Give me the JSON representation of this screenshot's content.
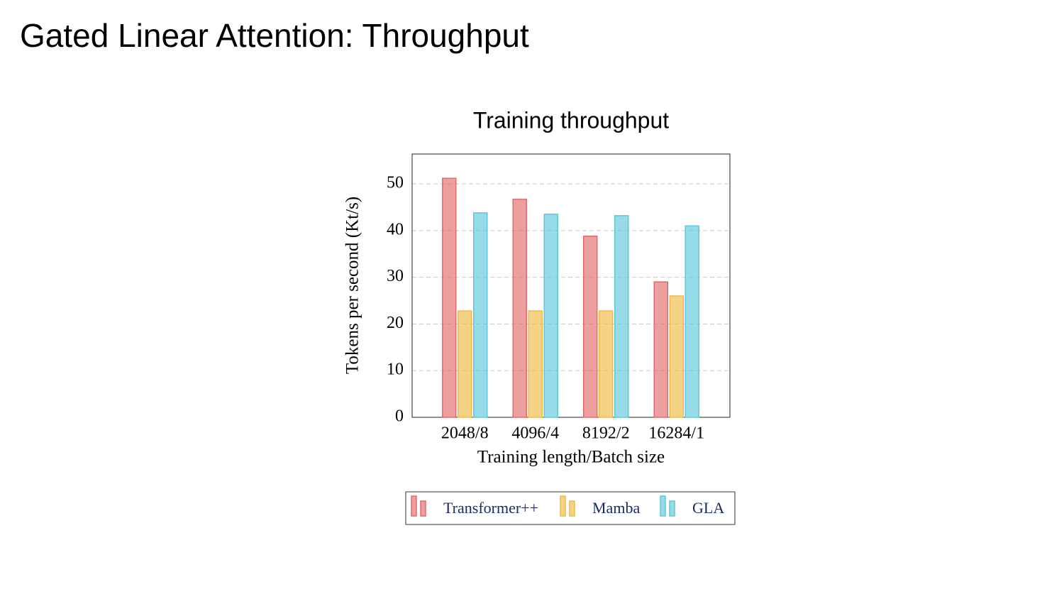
{
  "slide": {
    "title": "Gated Linear Attention: Throughput"
  },
  "chart_data": {
    "type": "bar",
    "title": "Training throughput",
    "x_label": "Training length/Batch size",
    "y_label": "Tokens per second (Kt/s)",
    "categories": [
      "2048/8",
      "4096/4",
      "8192/2",
      "16284/1"
    ],
    "series": [
      {
        "name": "Transformer++",
        "color": "#e46a6a",
        "values": [
          51.2,
          46.7,
          38.8,
          29.0
        ]
      },
      {
        "name": "Mamba",
        "color": "#efbb45",
        "values": [
          22.8,
          22.8,
          22.8,
          26.0
        ]
      },
      {
        "name": "GLA",
        "color": "#5ec8da",
        "values": [
          43.8,
          43.5,
          43.2,
          41.0
        ]
      }
    ],
    "ylim": [
      0,
      56.4
    ],
    "yticks": [
      0,
      10,
      20,
      30,
      40,
      50
    ],
    "grid": true,
    "legend": "bottom"
  }
}
